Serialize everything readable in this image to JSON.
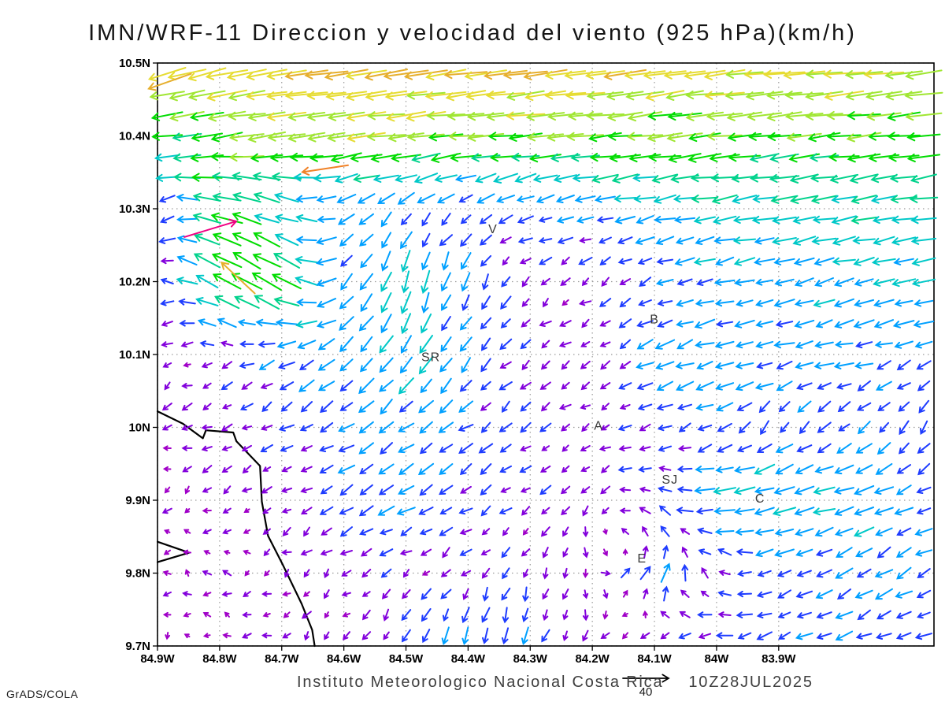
{
  "title": "IMN/WRF-11 Direccion y velocidad del viento (925 hPa)(km/h)",
  "footer": {
    "institute": "Instituto Meteorologico Nacional Costa Rica",
    "datetime": "10Z28JUL2025",
    "credit": "GrADS/COLA"
  },
  "chart_data": {
    "type": "vector_field",
    "title": "IMN/WRF-11 Direccion y velocidad del viento (925 hPa)(km/h)",
    "variable": "Direccion y velocidad del viento",
    "level": "925 hPa",
    "units": "km/h",
    "xlim_lonW": [
      84.9,
      83.65
    ],
    "ylim_latN": [
      9.7,
      10.5
    ],
    "x_tick_values": [
      84.9,
      84.8,
      84.7,
      84.6,
      84.5,
      84.4,
      84.3,
      84.2,
      84.1,
      84.0,
      83.9
    ],
    "x_tick_labels": [
      "84.9W",
      "84.8W",
      "84.7W",
      "84.6W",
      "84.5W",
      "84.4W",
      "84.3W",
      "84.2W",
      "84.1W",
      "84W",
      "83.9W"
    ],
    "y_tick_values": [
      10.5,
      10.4,
      10.3,
      10.2,
      10.1,
      10.0,
      9.9,
      9.8,
      9.7
    ],
    "y_tick_labels": [
      "10.5N",
      "10.4N",
      "10.3N",
      "10.2N",
      "10.1N",
      "10N",
      "9.9N",
      "9.8N",
      "9.7N"
    ],
    "grid_style": "dotted",
    "reference_vector_kmh": 40,
    "reference_vector_label": "40",
    "speed_palette_kmh": [
      {
        "max": 4,
        "color": "#a000c8"
      },
      {
        "max": 8,
        "color": "#8200dc"
      },
      {
        "max": 12,
        "color": "#1e3cff"
      },
      {
        "max": 16,
        "color": "#00a0ff"
      },
      {
        "max": 20,
        "color": "#00c8c8"
      },
      {
        "max": 24,
        "color": "#00d28c"
      },
      {
        "max": 28,
        "color": "#00dc00"
      },
      {
        "max": 32,
        "color": "#a0e632"
      },
      {
        "max": 36,
        "color": "#e6dc32"
      },
      {
        "max": 40,
        "color": "#e6af2d"
      },
      {
        "max": 44,
        "color": "#f08228"
      },
      {
        "max": 48,
        "color": "#fa3c3c"
      },
      {
        "max": 9999,
        "color": "#f00082"
      }
    ],
    "sample_grid": {
      "lons_w": [
        84.9,
        84.8,
        84.7,
        84.6,
        84.5,
        84.4,
        84.3,
        84.2,
        84.1,
        84.0,
        83.9,
        83.8,
        83.7,
        83.6
      ],
      "lats_n": [
        10.5,
        10.4,
        10.3,
        10.2,
        10.1,
        10.0,
        9.9,
        9.8,
        9.7
      ],
      "u_kmh": [
        [
          -32,
          -34,
          -36,
          -37,
          -37,
          -36,
          -36,
          -35,
          -35,
          -34,
          -34,
          -33,
          -33,
          -32
        ],
        [
          -22,
          -27,
          -30,
          -30,
          -30,
          -29,
          -29,
          -28,
          -28,
          -28,
          -27,
          -27,
          -26,
          -26
        ],
        [
          -8,
          -25,
          -16,
          -10,
          -8,
          -8,
          -10,
          -12,
          -15,
          -17,
          -18,
          -19,
          -19,
          -19
        ],
        [
          -6,
          -22,
          -24,
          -10,
          -4,
          -5,
          -4,
          -5,
          -10,
          -13,
          -14,
          -15,
          -16,
          -16
        ],
        [
          -4,
          -6,
          -10,
          -11,
          -9,
          -8,
          -6,
          -5,
          -12,
          -14,
          -13,
          -13,
          -12,
          -12
        ],
        [
          -3,
          -5,
          -8,
          -10,
          -10,
          -8,
          -6,
          -4,
          -8,
          -10,
          -7,
          -8,
          -6,
          -6
        ],
        [
          -3,
          -3,
          -5,
          -10,
          -12,
          -8,
          -5,
          -4,
          -8,
          -16,
          -18,
          -16,
          -12,
          -10
        ],
        [
          -2,
          -3,
          -3,
          -4,
          -5,
          -4,
          -3,
          2,
          6,
          -6,
          -10,
          -12,
          -10,
          -8
        ],
        [
          -2,
          -2,
          -3,
          -3,
          -4,
          -4,
          -3,
          -4,
          -8,
          -10,
          -9,
          -10,
          -10,
          -9
        ]
      ],
      "v_kmh": [
        [
          -9,
          -7,
          -6,
          -6,
          -5,
          -5,
          -5,
          -5,
          -5,
          -5,
          -4,
          -4,
          -4,
          -4
        ],
        [
          -2,
          -4,
          -4,
          -3,
          -3,
          -3,
          -3,
          -3,
          -3,
          -3,
          -3,
          -3,
          -3,
          -3
        ],
        [
          -4,
          6,
          6,
          -6,
          -8,
          -6,
          -4,
          -3,
          -3,
          -3,
          -3,
          -3,
          -3,
          -3
        ],
        [
          -2,
          14,
          14,
          -10,
          -18,
          -12,
          -4,
          -3,
          -4,
          -4,
          -4,
          -4,
          -4,
          -4
        ],
        [
          -2,
          -2,
          -6,
          -10,
          -13,
          -9,
          -4,
          -3,
          -5,
          -4,
          -3,
          -3,
          -4,
          -4
        ],
        [
          -2,
          -3,
          -4,
          -6,
          -8,
          -6,
          -4,
          -3,
          -4,
          -5,
          -8,
          -6,
          -8,
          -8
        ],
        [
          -1,
          -2,
          -3,
          -5,
          -6,
          -5,
          -4,
          -4,
          4,
          -3,
          -3,
          -4,
          -5,
          -5
        ],
        [
          1,
          1,
          -2,
          -3,
          -3,
          -4,
          -6,
          -6,
          14,
          5,
          -5,
          -6,
          -6,
          -5
        ],
        [
          -1,
          -1,
          -2,
          -3,
          -8,
          -14,
          -12,
          -3,
          -4,
          -3,
          -3,
          -4,
          -4,
          -4
        ]
      ]
    },
    "extra_vectors": [
      {
        "lon_w": 84.815,
        "lat_n": 10.272,
        "u_kmh": 46,
        "v_kmh": 14
      },
      {
        "lon_w": 84.63,
        "lat_n": 10.355,
        "u_kmh": -40,
        "v_kmh": -6
      },
      {
        "lon_w": 84.88,
        "lat_n": 10.475,
        "u_kmh": -37,
        "v_kmh": -13
      },
      {
        "lon_w": 84.77,
        "lat_n": 10.205,
        "u_kmh": -29,
        "v_kmh": 27
      }
    ],
    "cities": [
      {
        "label": "V",
        "lon_w": 84.36,
        "lat_n": 10.272
      },
      {
        "label": "B",
        "lon_w": 84.1,
        "lat_n": 10.148
      },
      {
        "label": "SR",
        "lon_w": 84.46,
        "lat_n": 10.096
      },
      {
        "label": "A",
        "lon_w": 84.19,
        "lat_n": 10.002
      },
      {
        "label": "SJ",
        "lon_w": 84.075,
        "lat_n": 9.928
      },
      {
        "label": "C",
        "lon_w": 83.93,
        "lat_n": 9.902
      },
      {
        "label": "E",
        "lon_w": 84.12,
        "lat_n": 9.82
      }
    ],
    "coastline_lonlat": [
      [
        [
          84.9,
          10.022
        ],
        [
          84.859,
          10.005
        ],
        [
          84.827,
          9.985
        ],
        [
          84.822,
          9.996
        ],
        [
          84.778,
          9.993
        ],
        [
          84.773,
          9.981
        ],
        [
          84.735,
          9.947
        ],
        [
          84.732,
          9.898
        ],
        [
          84.722,
          9.851
        ],
        [
          84.698,
          9.811
        ],
        [
          84.668,
          9.758
        ],
        [
          84.651,
          9.722
        ],
        [
          84.647,
          9.7
        ]
      ],
      [
        [
          84.9,
          9.843
        ],
        [
          84.849,
          9.828
        ],
        [
          84.9,
          9.815
        ]
      ]
    ]
  }
}
